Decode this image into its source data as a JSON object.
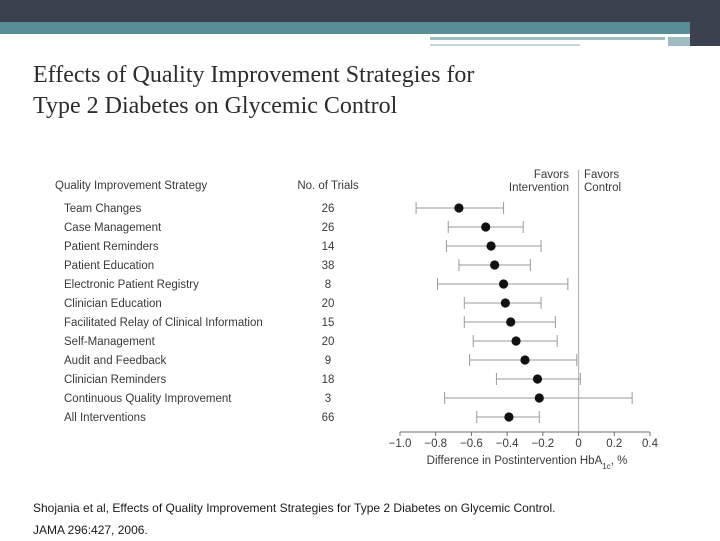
{
  "slide": {
    "title_line1": "Effects of Quality Improvement Strategies for",
    "title_line2": "Type 2 Diabetes on Glycemic Control",
    "caption_line1": "Shojania et al, Effects of Quality Improvement Strategies for Type 2 Diabetes on Glycemic Control.",
    "caption_line2": "JAMA 296:427, 2006."
  },
  "colors": {
    "topbar": "#3c4150",
    "teal": "#5a8e96",
    "text": "#2d2d2d",
    "marker": "#111111"
  },
  "chart_data": {
    "type": "scatter",
    "subtype": "forest-plot",
    "column_headers": {
      "strategy": "Quality Improvement Strategy",
      "trials": "No. of Trials"
    },
    "favors_left": [
      "Favors",
      "Intervention"
    ],
    "favors_right": [
      "Favors",
      "Control"
    ],
    "xlabel": "Difference in Postintervention HbA1c, %",
    "xlim": [
      -1.0,
      0.4
    ],
    "xticks": [
      "−1.0",
      "−0.8",
      "−0.6",
      "−0.4",
      "−0.2",
      "0",
      "0.2",
      "0.4"
    ],
    "xtick_values": [
      -1.0,
      -0.8,
      -0.6,
      -0.4,
      -0.2,
      0,
      0.2,
      0.4
    ],
    "reference_line": 0,
    "rows": [
      {
        "strategy": "Team Changes",
        "trials": "26",
        "estimate": -0.67,
        "ci": [
          -0.91,
          -0.42
        ]
      },
      {
        "strategy": "Case Management",
        "trials": "26",
        "estimate": -0.52,
        "ci": [
          -0.73,
          -0.31
        ]
      },
      {
        "strategy": "Patient Reminders",
        "trials": "14",
        "estimate": -0.49,
        "ci": [
          -0.74,
          -0.21
        ]
      },
      {
        "strategy": "Patient Education",
        "trials": "38",
        "estimate": -0.47,
        "ci": [
          -0.67,
          -0.27
        ]
      },
      {
        "strategy": "Electronic Patient Registry",
        "trials": "8",
        "estimate": -0.42,
        "ci": [
          -0.79,
          -0.06
        ]
      },
      {
        "strategy": "Clinician Education",
        "trials": "20",
        "estimate": -0.41,
        "ci": [
          -0.64,
          -0.21
        ]
      },
      {
        "strategy": "Facilitated Relay of Clinical Information",
        "trials": "15",
        "estimate": -0.38,
        "ci": [
          -0.64,
          -0.13
        ]
      },
      {
        "strategy": "Self-Management",
        "trials": "20",
        "estimate": -0.35,
        "ci": [
          -0.59,
          -0.12
        ]
      },
      {
        "strategy": "Audit and Feedback",
        "trials": "9",
        "estimate": -0.3,
        "ci": [
          -0.61,
          -0.01
        ]
      },
      {
        "strategy": "Clinician Reminders",
        "trials": "18",
        "estimate": -0.23,
        "ci": [
          -0.46,
          0.01
        ]
      },
      {
        "strategy": "Continuous Quality Improvement",
        "trials": "3",
        "estimate": -0.22,
        "ci": [
          -0.75,
          0.3
        ]
      },
      {
        "strategy": "All Interventions",
        "trials": "66",
        "estimate": -0.39,
        "ci": [
          -0.57,
          -0.22
        ]
      }
    ]
  }
}
